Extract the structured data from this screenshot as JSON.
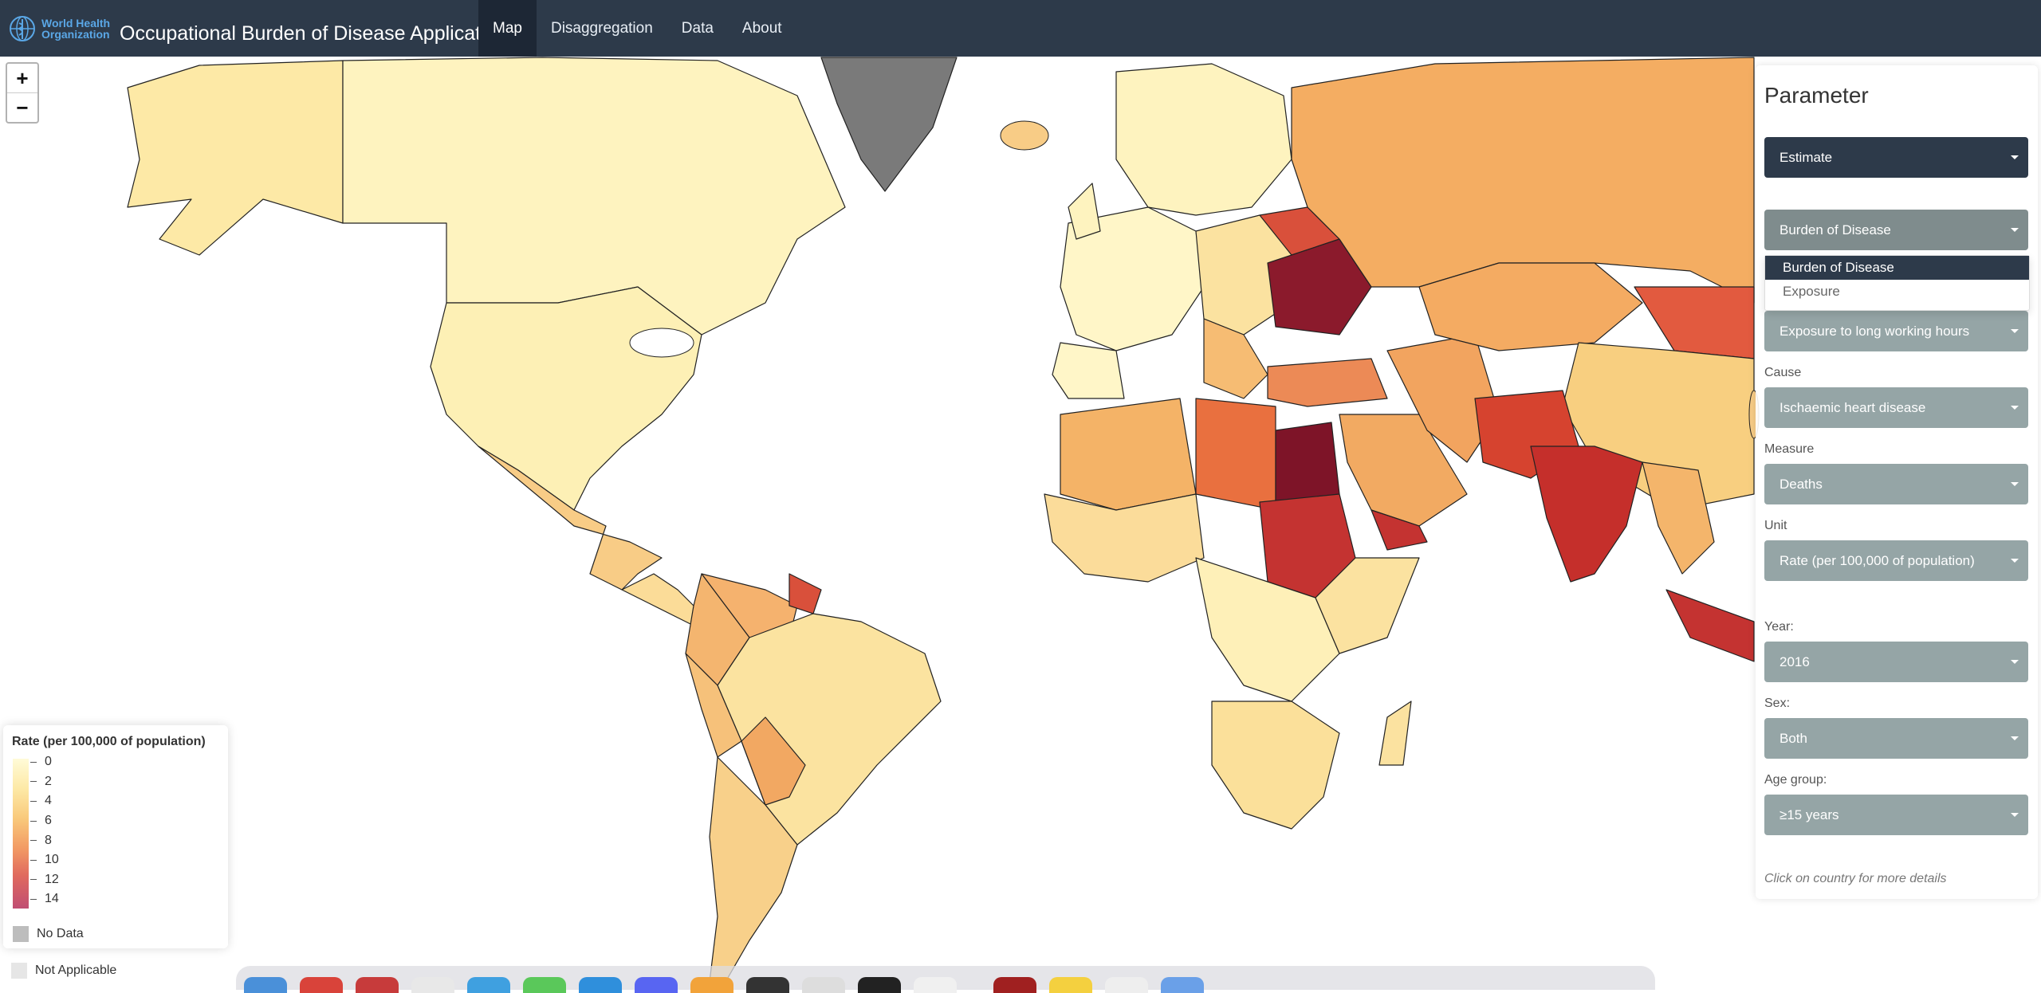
{
  "brand": {
    "org_line1": "World Health",
    "org_line2": "Organization",
    "app_title": "Occupational Burden of Disease Application",
    "logo_icon": "who-emblem-icon"
  },
  "nav": {
    "tabs": [
      {
        "label": "Map",
        "active": true
      },
      {
        "label": "Disaggregation",
        "active": false
      },
      {
        "label": "Data",
        "active": false
      },
      {
        "label": "About",
        "active": false
      }
    ]
  },
  "map": {
    "zoom_in": "+",
    "zoom_out": "−"
  },
  "legend": {
    "title": "Rate (per 100,000 of population)",
    "ticks": [
      "0",
      "2",
      "4",
      "6",
      "8",
      "10",
      "12",
      "14"
    ],
    "no_data": "No Data",
    "not_applicable": "Not Applicable",
    "colors": {
      "low": "#fffbd8",
      "mid": "#f9c97b",
      "high": "#c04e73",
      "no_data": "#bdbdbd",
      "not_applicable": "#e6e6e6"
    }
  },
  "panel": {
    "title": "Parameter",
    "estimate": "Estimate",
    "burden_type": "Burden of Disease",
    "dropdown_options": [
      {
        "label": "Burden of Disease",
        "active": true
      },
      {
        "label": "Exposure",
        "active": false
      }
    ],
    "risk_factor": "Exposure to long working hours",
    "cause_label": "Cause",
    "cause_value": "Ischaemic heart disease",
    "measure_label": "Measure",
    "measure_value": "Deaths",
    "unit_label": "Unit",
    "unit_value": "Rate (per 100,000 of population)",
    "year_label": "Year:",
    "year_value": "2016",
    "sex_label": "Sex:",
    "sex_value": "Both",
    "age_label": "Age group:",
    "age_value": "≥15 years",
    "note": "Click on country for more details"
  },
  "colors": {
    "navbar": "#2d3a4a",
    "select_active": "#2d3a4a",
    "select": "#95a5a6"
  }
}
